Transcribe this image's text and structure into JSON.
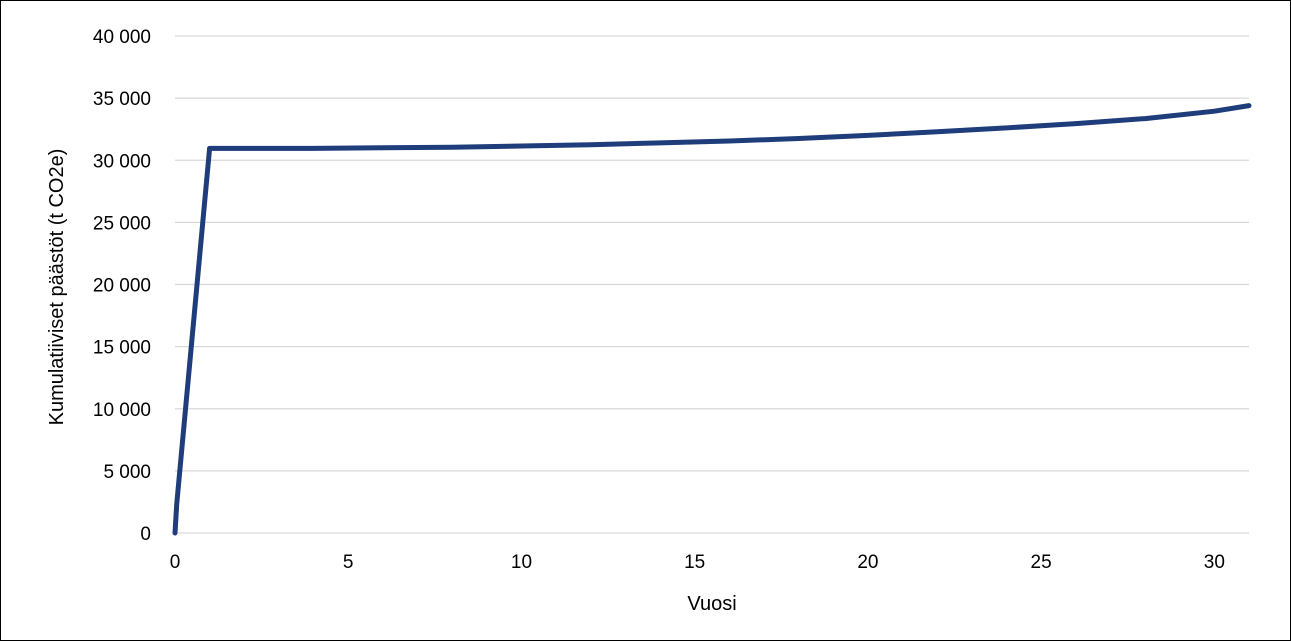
{
  "chart_data": {
    "type": "line",
    "title": "",
    "xlabel": "Vuosi",
    "ylabel": "Kumulatiiviset päästöt (t CO2e)",
    "xlim": [
      0,
      31
    ],
    "ylim": [
      0,
      40000
    ],
    "x_ticks": [
      "0",
      "5",
      "10",
      "15",
      "20",
      "25",
      "30"
    ],
    "y_ticks": [
      "0",
      "5 000",
      "10 000",
      "15 000",
      "20 000",
      "25 000",
      "30 000",
      "35 000",
      "40 000"
    ],
    "grid": "horizontal",
    "legend": "none",
    "series": [
      {
        "color": "#1f3d7a",
        "x": [
          0,
          0.05,
          1,
          2,
          4,
          6,
          8,
          10,
          12,
          14,
          16,
          18,
          20,
          22,
          24,
          26,
          28,
          30,
          31
        ],
        "y": [
          0,
          2300,
          30950,
          30950,
          30950,
          31000,
          31050,
          31150,
          31250,
          31400,
          31550,
          31750,
          32000,
          32300,
          32600,
          32950,
          33350,
          33950,
          34400
        ]
      }
    ]
  }
}
